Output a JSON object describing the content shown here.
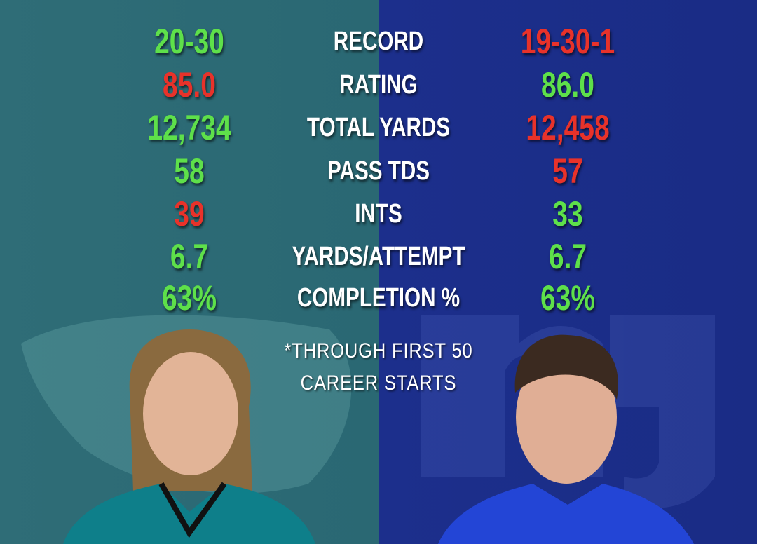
{
  "rows": [
    {
      "left": "20-30",
      "label": "RECORD",
      "right": "19-30-1",
      "left_color": "#5ee04a",
      "right_color": "#e8322a"
    },
    {
      "left": "85.0",
      "label": "RATING",
      "right": "86.0",
      "left_color": "#e8322a",
      "right_color": "#5ee04a"
    },
    {
      "left": "12,734",
      "label": "TOTAL YARDS",
      "right": "12,458",
      "left_color": "#5ee04a",
      "right_color": "#e8322a"
    },
    {
      "left": "58",
      "label": "PASS TDS",
      "right": "57",
      "left_color": "#5ee04a",
      "right_color": "#e8322a"
    },
    {
      "left": "39",
      "label": "INTS",
      "right": "33",
      "left_color": "#e8322a",
      "right_color": "#5ee04a"
    },
    {
      "left": "6.7",
      "label": "YARDS/ATTEMPT",
      "right": "6.7",
      "left_color": "#5ee04a",
      "right_color": "#5ee04a"
    },
    {
      "left": "63%",
      "label": "COMPLETION %",
      "right": "63%",
      "left_color": "#5ee04a",
      "right_color": "#5ee04a"
    }
  ],
  "footnote": [
    "*THROUGH FIRST 50",
    "CAREER STARTS"
  ]
}
